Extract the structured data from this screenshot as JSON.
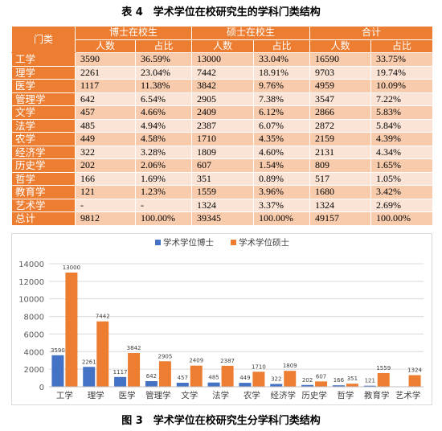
{
  "table_title": "表 4　学术学位在校研究生的学科门类结构",
  "figure_title": "图 3　学术学位在校研究生分学科门类结构",
  "table": {
    "category_header": "门类",
    "group_headers": [
      "博士在校生",
      "硕士在校生",
      "合计"
    ],
    "sub_headers": [
      "人数",
      "占比",
      "人数",
      "占比",
      "人数",
      "占比"
    ],
    "rows": [
      {
        "cat": "工学",
        "vals": [
          "3590",
          "36.59%",
          "13000",
          "33.04%",
          "16590",
          "33.75%"
        ]
      },
      {
        "cat": "理学",
        "vals": [
          "2261",
          "23.04%",
          "7442",
          "18.91%",
          "9703",
          "19.74%"
        ]
      },
      {
        "cat": "医学",
        "vals": [
          "1117",
          "11.38%",
          "3842",
          "9.76%",
          "4959",
          "10.09%"
        ]
      },
      {
        "cat": "管理学",
        "vals": [
          "642",
          "6.54%",
          "2905",
          "7.38%",
          "3547",
          "7.22%"
        ]
      },
      {
        "cat": "文学",
        "vals": [
          "457",
          "4.66%",
          "2409",
          "6.12%",
          "2866",
          "5.83%"
        ]
      },
      {
        "cat": "法学",
        "vals": [
          "485",
          "4.94%",
          "2387",
          "6.07%",
          "2872",
          "5.84%"
        ]
      },
      {
        "cat": "农学",
        "vals": [
          "449",
          "4.58%",
          "1710",
          "4.35%",
          "2159",
          "4.39%"
        ]
      },
      {
        "cat": "经济学",
        "vals": [
          "322",
          "3.28%",
          "1809",
          "4.60%",
          "2131",
          "4.34%"
        ]
      },
      {
        "cat": "历史学",
        "vals": [
          "202",
          "2.06%",
          "607",
          "1.54%",
          "809",
          "1.65%"
        ]
      },
      {
        "cat": "哲学",
        "vals": [
          "166",
          "1.69%",
          "351",
          "0.89%",
          "517",
          "1.05%"
        ]
      },
      {
        "cat": "教育学",
        "vals": [
          "121",
          "1.23%",
          "1559",
          "3.96%",
          "1680",
          "3.42%"
        ]
      },
      {
        "cat": "艺术学",
        "vals": [
          "-",
          "-",
          "1324",
          "3.37%",
          "1324",
          "2.69%"
        ]
      },
      {
        "cat": "总计",
        "vals": [
          "9812",
          "100.00%",
          "39345",
          "100.00%",
          "49157",
          "100.00%"
        ]
      }
    ]
  },
  "chart_data": {
    "type": "bar",
    "categories": [
      "工学",
      "理学",
      "医学",
      "管理学",
      "文学",
      "法学",
      "农学",
      "经济学",
      "历史学",
      "哲学",
      "教育学",
      "艺术学"
    ],
    "series": [
      {
        "name": "学术学位博士",
        "color": "#4472c4",
        "values": [
          3590,
          2261,
          1117,
          642,
          457,
          485,
          449,
          322,
          202,
          166,
          121,
          null
        ]
      },
      {
        "name": "学术学位硕士",
        "color": "#ed7d31",
        "values": [
          13000,
          7442,
          3842,
          2905,
          2409,
          2387,
          1710,
          1809,
          607,
          351,
          1559,
          1324
        ]
      }
    ],
    "y_ticks": [
      0,
      2000,
      4000,
      6000,
      8000,
      10000,
      12000,
      14000
    ],
    "ylim": [
      0,
      14000
    ],
    "grid": true,
    "legend_position": "top-center",
    "data_labels": true
  }
}
